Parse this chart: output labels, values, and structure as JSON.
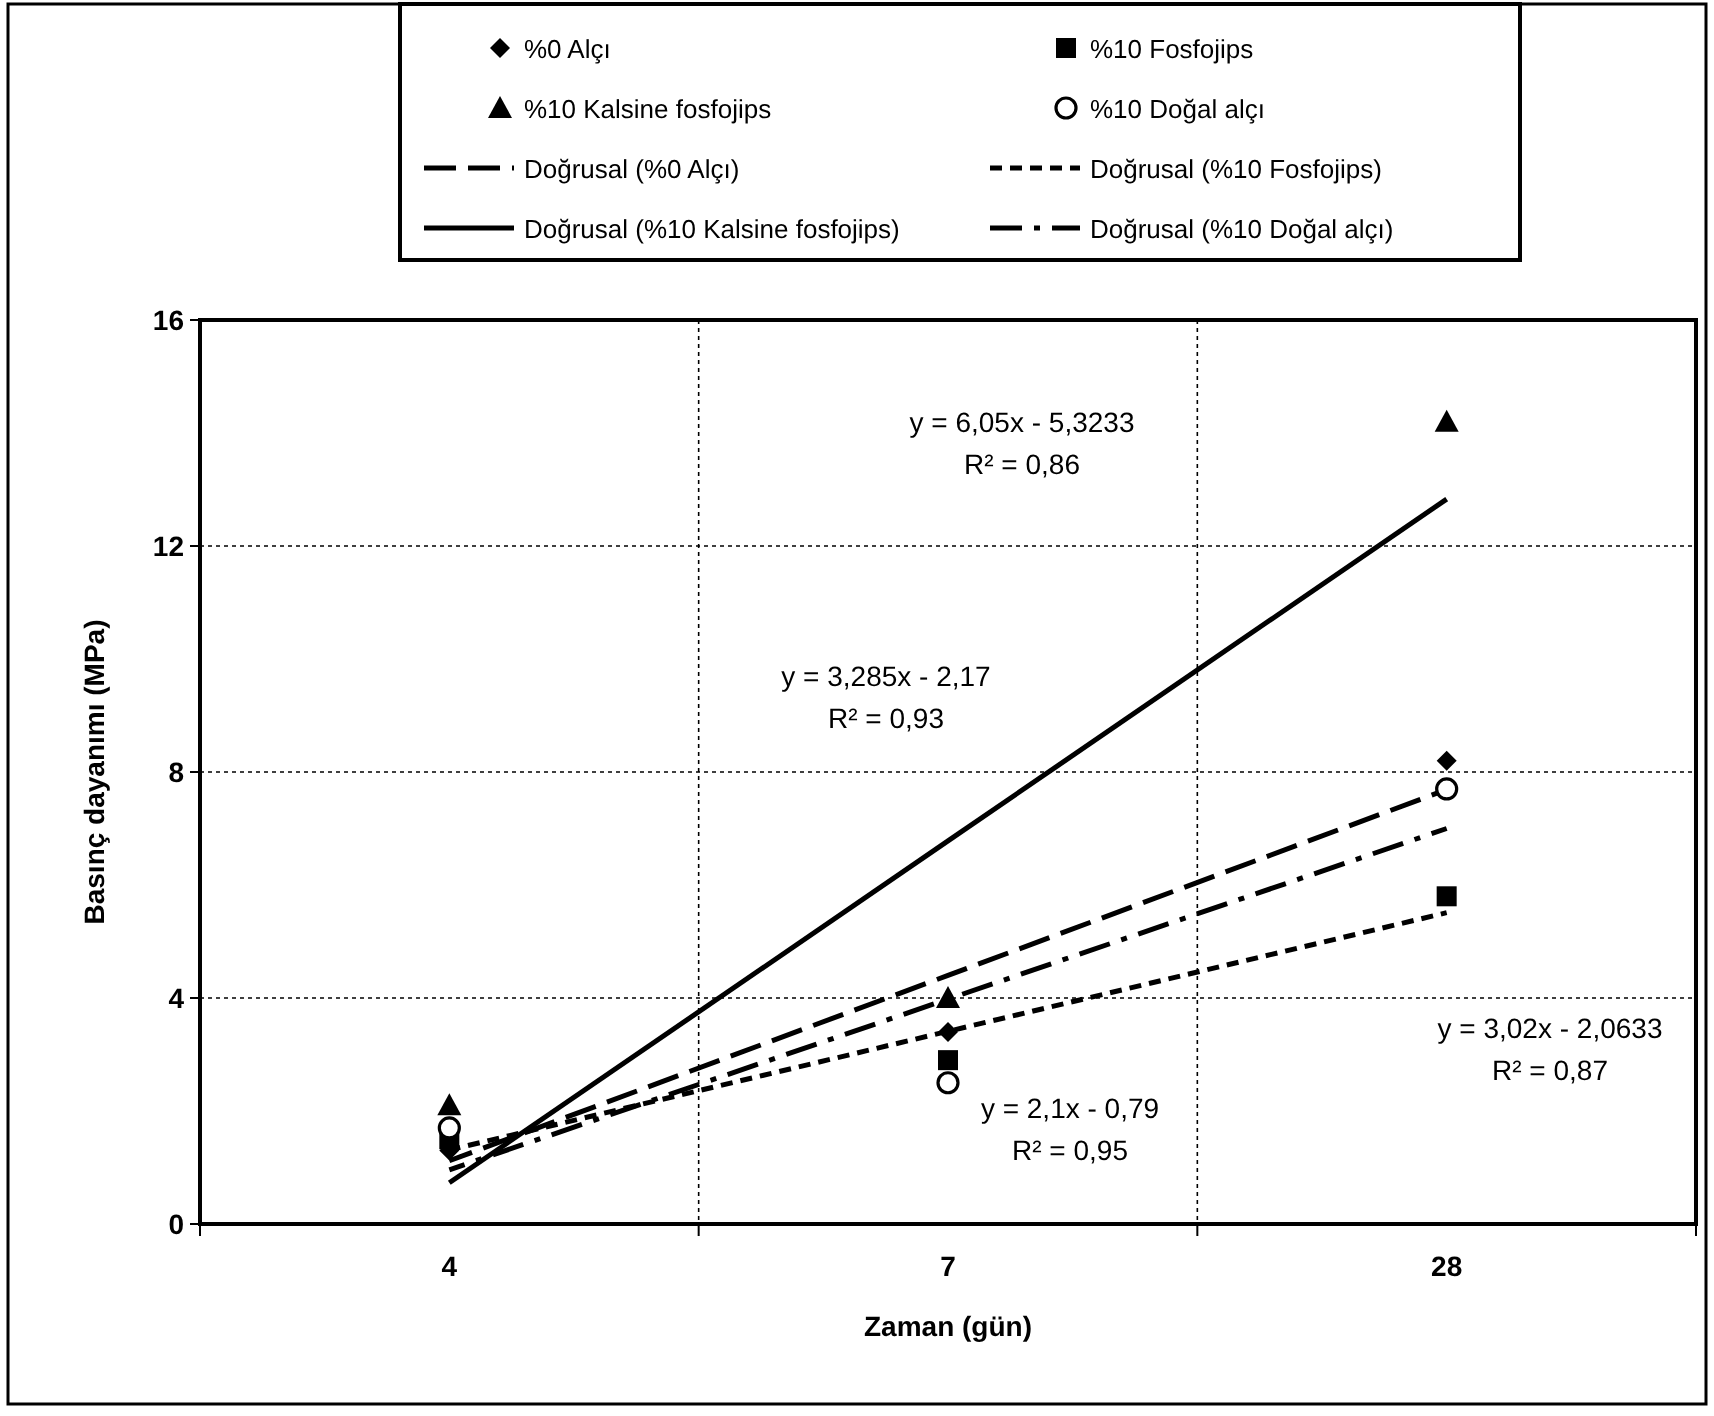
{
  "chart_data": {
    "type": "scatter",
    "xlabel": "Zaman (gün)",
    "ylabel": "Basınç dayanımı (MPa)",
    "categories": [
      "4",
      "7",
      "28"
    ],
    "ylim": [
      0,
      16
    ],
    "yticks": [
      0,
      4,
      8,
      12,
      16
    ],
    "grid": true,
    "legend": "top",
    "series": [
      {
        "name": "%0 Alçı",
        "marker": "diamond",
        "color": "#000000",
        "values": [
          1.3,
          3.4,
          8.2
        ]
      },
      {
        "name": "%10 Fosfojips",
        "marker": "square",
        "color": "#000000",
        "values": [
          1.5,
          2.9,
          5.8
        ]
      },
      {
        "name": "%10 Kalsine fosfojips",
        "marker": "triangle",
        "color": "#000000",
        "values": [
          2.1,
          4.0,
          14.2
        ]
      },
      {
        "name": "%10 Doğal alçı",
        "marker": "circle",
        "color": "#000000",
        "values": [
          1.7,
          2.5,
          7.7
        ]
      },
      {
        "name": "Doğrusal (%0 Alçı)",
        "type": "line",
        "line_style": "dashed",
        "color": "#000000",
        "values": [
          1.12,
          4.4,
          7.69
        ]
      },
      {
        "name": "Doğrusal (%10 Fosfojips)",
        "type": "line",
        "line_style": "dotted",
        "color": "#000000",
        "values": [
          1.31,
          3.41,
          5.51
        ]
      },
      {
        "name": "Doğrusal (%10 Kalsine fosfojips)",
        "type": "line",
        "line_style": "solid",
        "color": "#000000",
        "values": [
          0.73,
          6.78,
          12.83
        ]
      },
      {
        "name": "Doğrusal (%10 Doğal alçı)",
        "type": "line",
        "line_style": "dashdot",
        "color": "#000000",
        "values": [
          0.96,
          3.98,
          7.0
        ]
      }
    ],
    "annotations": [
      "y = 6,05x - 5,3233\nR² = 0,86",
      "y = 3,285x - 2,17\nR² = 0,93",
      "y = 2,1x - 0,79\nR² = 0,95",
      "y = 3,02x - 2,0633\nR² = 0,87"
    ]
  }
}
